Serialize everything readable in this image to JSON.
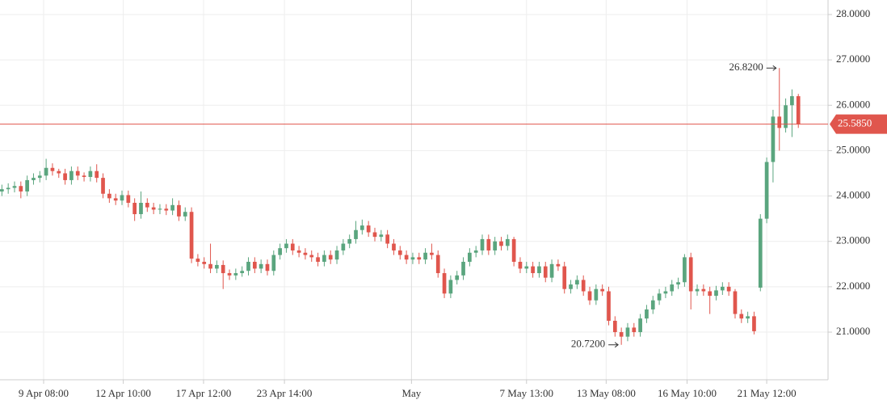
{
  "chart_data": {
    "type": "candlestick",
    "ohlc": [
      [
        24.1,
        24.25,
        24.0,
        24.15
      ],
      [
        24.15,
        24.28,
        24.05,
        24.18
      ],
      [
        24.18,
        24.32,
        24.08,
        24.22
      ],
      [
        24.22,
        24.32,
        23.95,
        24.1
      ],
      [
        24.1,
        24.45,
        24.0,
        24.35
      ],
      [
        24.35,
        24.5,
        24.25,
        24.4
      ],
      [
        24.4,
        24.55,
        24.3,
        24.45
      ],
      [
        24.45,
        24.82,
        24.35,
        24.62
      ],
      [
        24.62,
        24.72,
        24.45,
        24.55
      ],
      [
        24.55,
        24.6,
        24.4,
        24.5
      ],
      [
        24.5,
        24.6,
        24.25,
        24.35
      ],
      [
        24.35,
        24.65,
        24.25,
        24.55
      ],
      [
        24.55,
        24.65,
        24.35,
        24.45
      ],
      [
        24.45,
        24.52,
        24.32,
        24.42
      ],
      [
        24.42,
        24.65,
        24.32,
        24.55
      ],
      [
        24.55,
        24.7,
        24.3,
        24.4
      ],
      [
        24.4,
        24.5,
        23.95,
        24.05
      ],
      [
        24.05,
        24.15,
        23.85,
        23.95
      ],
      [
        23.95,
        24.05,
        23.8,
        23.9
      ],
      [
        23.9,
        24.12,
        23.8,
        24.02
      ],
      [
        24.02,
        24.12,
        23.75,
        23.85
      ],
      [
        23.85,
        23.95,
        23.45,
        23.6
      ],
      [
        23.6,
        24.1,
        23.5,
        23.85
      ],
      [
        23.85,
        23.95,
        23.65,
        23.75
      ],
      [
        23.75,
        23.85,
        23.6,
        23.7
      ],
      [
        23.7,
        23.82,
        23.6,
        23.72
      ],
      [
        23.72,
        23.82,
        23.58,
        23.68
      ],
      [
        23.68,
        23.95,
        23.58,
        23.8
      ],
      [
        23.8,
        23.9,
        23.45,
        23.55
      ],
      [
        23.55,
        23.75,
        23.45,
        23.65
      ],
      [
        23.65,
        23.75,
        22.52,
        22.62
      ],
      [
        22.62,
        22.72,
        22.45,
        22.55
      ],
      [
        22.55,
        22.65,
        22.4,
        22.5
      ],
      [
        22.5,
        22.95,
        22.3,
        22.4
      ],
      [
        22.4,
        22.58,
        22.3,
        22.48
      ],
      [
        22.48,
        22.58,
        21.95,
        22.3
      ],
      [
        22.3,
        22.38,
        22.15,
        22.25
      ],
      [
        22.25,
        22.4,
        22.15,
        22.3
      ],
      [
        22.3,
        22.45,
        22.22,
        22.35
      ],
      [
        22.35,
        22.65,
        22.25,
        22.55
      ],
      [
        22.55,
        22.65,
        22.3,
        22.4
      ],
      [
        22.4,
        22.6,
        22.3,
        22.5
      ],
      [
        22.5,
        22.6,
        22.25,
        22.35
      ],
      [
        22.35,
        22.8,
        22.25,
        22.7
      ],
      [
        22.7,
        22.95,
        22.6,
        22.85
      ],
      [
        22.85,
        23.05,
        22.75,
        22.95
      ],
      [
        22.95,
        23.05,
        22.7,
        22.8
      ],
      [
        22.8,
        22.9,
        22.65,
        22.75
      ],
      [
        22.75,
        22.85,
        22.6,
        22.7
      ],
      [
        22.7,
        22.8,
        22.55,
        22.65
      ],
      [
        22.65,
        22.75,
        22.45,
        22.55
      ],
      [
        22.55,
        22.8,
        22.45,
        22.7
      ],
      [
        22.7,
        22.8,
        22.5,
        22.6
      ],
      [
        22.6,
        22.9,
        22.5,
        22.8
      ],
      [
        22.8,
        23.05,
        22.7,
        22.95
      ],
      [
        22.95,
        23.15,
        22.85,
        23.05
      ],
      [
        23.05,
        23.45,
        22.95,
        23.25
      ],
      [
        23.25,
        23.48,
        23.15,
        23.35
      ],
      [
        23.35,
        23.45,
        23.1,
        23.2
      ],
      [
        23.2,
        23.3,
        23.0,
        23.1
      ],
      [
        23.1,
        23.25,
        23.0,
        23.15
      ],
      [
        23.15,
        23.25,
        22.85,
        22.95
      ],
      [
        22.95,
        23.05,
        22.7,
        22.8
      ],
      [
        22.8,
        22.9,
        22.6,
        22.7
      ],
      [
        22.7,
        22.8,
        22.5,
        22.6
      ],
      [
        22.6,
        22.75,
        22.5,
        22.65
      ],
      [
        22.65,
        22.75,
        22.5,
        22.6
      ],
      [
        22.6,
        22.85,
        22.5,
        22.75
      ],
      [
        22.75,
        22.95,
        22.6,
        22.7
      ],
      [
        22.7,
        22.8,
        22.2,
        22.3
      ],
      [
        22.3,
        22.4,
        21.75,
        21.85
      ],
      [
        21.85,
        22.25,
        21.75,
        22.15
      ],
      [
        22.15,
        22.35,
        22.05,
        22.25
      ],
      [
        22.25,
        22.65,
        22.15,
        22.55
      ],
      [
        22.55,
        22.85,
        22.45,
        22.75
      ],
      [
        22.75,
        22.9,
        22.65,
        22.8
      ],
      [
        22.8,
        23.15,
        22.7,
        23.05
      ],
      [
        23.05,
        23.15,
        22.7,
        22.8
      ],
      [
        22.8,
        23.1,
        22.7,
        23.0
      ],
      [
        23.0,
        23.1,
        22.8,
        22.9
      ],
      [
        22.9,
        23.15,
        22.8,
        23.05
      ],
      [
        23.05,
        23.1,
        22.45,
        22.55
      ],
      [
        22.55,
        22.65,
        22.3,
        22.4
      ],
      [
        22.4,
        22.55,
        22.3,
        22.45
      ],
      [
        22.45,
        22.55,
        22.2,
        22.3
      ],
      [
        22.3,
        22.55,
        22.2,
        22.45
      ],
      [
        22.45,
        22.55,
        22.1,
        22.2
      ],
      [
        22.2,
        22.6,
        22.1,
        22.5
      ],
      [
        22.5,
        22.6,
        22.35,
        22.45
      ],
      [
        22.45,
        22.55,
        21.85,
        21.95
      ],
      [
        21.95,
        22.15,
        21.85,
        22.05
      ],
      [
        22.05,
        22.25,
        21.95,
        22.15
      ],
      [
        22.15,
        22.25,
        21.8,
        21.9
      ],
      [
        21.9,
        22.0,
        21.6,
        21.7
      ],
      [
        21.7,
        22.05,
        21.6,
        21.95
      ],
      [
        21.95,
        22.05,
        21.8,
        21.9
      ],
      [
        21.9,
        22.0,
        21.15,
        21.25
      ],
      [
        21.25,
        21.35,
        20.9,
        21.0
      ],
      [
        21.0,
        21.1,
        20.72,
        20.9
      ],
      [
        20.9,
        21.2,
        20.8,
        21.1
      ],
      [
        21.1,
        21.2,
        20.9,
        21.0
      ],
      [
        21.0,
        21.4,
        20.9,
        21.3
      ],
      [
        21.3,
        21.6,
        21.2,
        21.5
      ],
      [
        21.5,
        21.8,
        21.4,
        21.7
      ],
      [
        21.7,
        21.95,
        21.6,
        21.85
      ],
      [
        21.85,
        22.0,
        21.75,
        21.9
      ],
      [
        21.9,
        22.15,
        21.8,
        22.05
      ],
      [
        22.05,
        22.2,
        21.95,
        22.1
      ],
      [
        22.1,
        22.72,
        22.0,
        22.65
      ],
      [
        22.65,
        22.75,
        21.5,
        21.9
      ],
      [
        21.9,
        22.05,
        21.8,
        21.95
      ],
      [
        21.95,
        22.05,
        21.8,
        21.9
      ],
      [
        21.9,
        22.0,
        21.4,
        21.8
      ],
      [
        21.8,
        22.02,
        21.7,
        21.92
      ],
      [
        21.92,
        22.1,
        21.82,
        22.0
      ],
      [
        22.0,
        22.1,
        21.8,
        21.9
      ],
      [
        21.9,
        21.95,
        21.3,
        21.4
      ],
      [
        21.4,
        21.5,
        21.2,
        21.3
      ],
      [
        21.3,
        21.45,
        21.2,
        21.35
      ],
      [
        21.35,
        21.45,
        20.95,
        21.02
      ],
      [
        21.98,
        23.6,
        21.9,
        23.5
      ],
      [
        23.5,
        24.85,
        23.4,
        24.75
      ],
      [
        24.75,
        25.9,
        24.3,
        25.75
      ],
      [
        25.75,
        26.82,
        25.0,
        25.5
      ],
      [
        25.5,
        26.15,
        25.4,
        26.0
      ],
      [
        26.0,
        26.35,
        25.3,
        26.2
      ],
      [
        26.2,
        26.25,
        25.5,
        25.585
      ]
    ],
    "up_color": "#5aa57e",
    "down_color": "#e0564d",
    "xlim": [
      0,
      131
    ],
    "xticks": [
      {
        "value": 6.9,
        "label": "9 Apr 08:00"
      },
      {
        "value": 19.5,
        "label": "12 Apr 10:00"
      },
      {
        "value": 32.2,
        "label": "17 Apr 12:00"
      },
      {
        "value": 45,
        "label": "23 Apr 14:00"
      },
      {
        "value": 65.1,
        "label": "May"
      },
      {
        "value": 83.3,
        "label": "7 May 13:00"
      },
      {
        "value": 95.9,
        "label": "13 May 08:00"
      },
      {
        "value": 108.7,
        "label": "16 May 10:00"
      },
      {
        "value": 121.3,
        "label": "21 May 12:00"
      }
    ],
    "ylim": [
      19.95,
      28.32
    ],
    "yticks": [
      {
        "value": 21,
        "label": "21.0000"
      },
      {
        "value": 22,
        "label": "22.0000"
      },
      {
        "value": 23,
        "label": "23.0000"
      },
      {
        "value": 24,
        "label": "24.0000"
      },
      {
        "value": 25,
        "label": "25.0000"
      },
      {
        "value": 26,
        "label": "26.0000"
      },
      {
        "value": 27,
        "label": "27.0000"
      },
      {
        "value": 28,
        "label": "28.0000"
      }
    ],
    "grid": true,
    "price_line": {
      "value": 25.585,
      "label": "25.5850",
      "color": "#e0564d"
    },
    "high_label": "26.8200",
    "low_label": "20.7200"
  }
}
